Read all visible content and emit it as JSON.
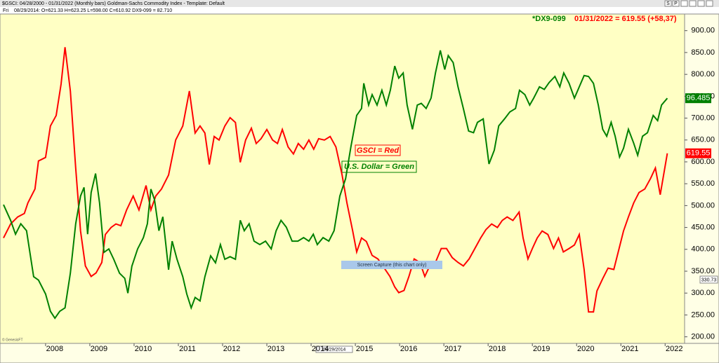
{
  "window": {
    "title": "$GSCI: 04/28/2000 - 01/31/2022  (Monthly bars)   Goldman-Sachs Commodity Index  -  Template: Default",
    "weekday": "Fri",
    "info": "08/29/2014:  O=621.33  H=623.25  L=598.00  C=610.92  DX9-099 = 82.710",
    "buttons": [
      "S",
      "P"
    ],
    "watermark": "© GenesisFT",
    "tooltip": "Screen Capture (this chart only)"
  },
  "chart_data": {
    "type": "line",
    "header_symbol": "*DX9-099",
    "header_quote": "01/31/2022 = 619.55 (+58,37)",
    "annotations": [
      "GSCI = Red",
      "U.S. Dollar = Green"
    ],
    "cursor_date": "08/29/2014",
    "cursor_value": 330.73,
    "xlim": [
      2006.97,
      2022.44
    ],
    "xticks": [
      2008,
      2009,
      2010,
      2011,
      2012,
      2013,
      2014,
      2015,
      2016,
      2017,
      2018,
      2019,
      2020,
      2021,
      2022
    ],
    "ylim": [
      185,
      938
    ],
    "yticks": [
      {
        "value": 200,
        "label": "200.00"
      },
      {
        "value": 250,
        "label": "250.00"
      },
      {
        "value": 300,
        "label": "300.00"
      },
      {
        "value": 350,
        "label": "350.00"
      },
      {
        "value": 400,
        "label": "400.00"
      },
      {
        "value": 450,
        "label": "450.00"
      },
      {
        "value": 500,
        "label": "500.00"
      },
      {
        "value": 550,
        "label": "550.00"
      },
      {
        "value": 600,
        "label": "600.00"
      },
      {
        "value": 650,
        "label": "650.00"
      },
      {
        "value": 700,
        "label": "700.00"
      },
      {
        "value": 750,
        "label": "750.00"
      },
      {
        "value": 800,
        "label": "800.00"
      },
      {
        "value": 850,
        "label": "850.00"
      },
      {
        "value": 900,
        "label": "900.00"
      }
    ],
    "y2lim": [
      68.2,
      106.2
    ],
    "grid": false,
    "series": [
      {
        "color": "#ff0000",
        "x": [
          2007.05,
          2007.21,
          2007.37,
          2007.52,
          2007.6,
          2007.76,
          2007.84,
          2008.0,
          2008.11,
          2008.24,
          2008.35,
          2008.44,
          2008.56,
          2008.68,
          2008.79,
          2008.9,
          2009.03,
          2009.14,
          2009.27,
          2009.35,
          2009.48,
          2009.59,
          2009.7,
          2009.83,
          2009.98,
          2010.11,
          2010.27,
          2010.38,
          2010.49,
          2010.62,
          2010.78,
          2010.94,
          2011.1,
          2011.25,
          2011.38,
          2011.49,
          2011.6,
          2011.7,
          2011.81,
          2011.92,
          2012.05,
          2012.17,
          2012.29,
          2012.4,
          2012.52,
          2012.65,
          2012.76,
          2012.87,
          2013.0,
          2013.13,
          2013.24,
          2013.35,
          2013.48,
          2013.6,
          2013.71,
          2013.83,
          2013.95,
          2014.06,
          2014.17,
          2014.3,
          2014.43,
          2014.56,
          2014.7,
          2014.81,
          2014.94,
          2015.03,
          2015.14,
          2015.25,
          2015.38,
          2015.51,
          2015.62,
          2015.78,
          2015.89,
          2015.98,
          2016.1,
          2016.21,
          2016.33,
          2016.46,
          2016.57,
          2016.68,
          2016.81,
          2016.94,
          2017.06,
          2017.19,
          2017.32,
          2017.44,
          2017.57,
          2017.7,
          2017.83,
          2017.95,
          2018.08,
          2018.21,
          2018.32,
          2018.43,
          2018.56,
          2018.7,
          2018.79,
          2018.9,
          2019.0,
          2019.11,
          2019.22,
          2019.35,
          2019.48,
          2019.59,
          2019.7,
          2019.83,
          2019.95,
          2020.06,
          2020.17,
          2020.27,
          2020.38,
          2020.46,
          2020.59,
          2020.71,
          2020.84,
          2020.94,
          2021.06,
          2021.17,
          2021.29,
          2021.41,
          2021.54,
          2021.67,
          2021.78,
          2021.89,
          2022.05
        ],
        "values": [
          426,
          458,
          474,
          482,
          506,
          538,
          602,
          610,
          682,
          706,
          778,
          862,
          762,
          586,
          442,
          362,
          338,
          346,
          370,
          434,
          450,
          458,
          454,
          490,
          522,
          490,
          546,
          490,
          522,
          538,
          570,
          650,
          682,
          762,
          666,
          682,
          666,
          594,
          658,
          650,
          682,
          701,
          690,
          599,
          650,
          677,
          642,
          653,
          674,
          650,
          642,
          674,
          634,
          618,
          642,
          629,
          650,
          629,
          653,
          650,
          658,
          634,
          570,
          506,
          442,
          394,
          426,
          418,
          386,
          378,
          362,
          338,
          314,
          301,
          306,
          338,
          378,
          370,
          338,
          362,
          370,
          402,
          402,
          381,
          370,
          362,
          378,
          402,
          426,
          445,
          458,
          450,
          466,
          474,
          466,
          485,
          426,
          378,
          402,
          426,
          442,
          434,
          402,
          426,
          394,
          402,
          410,
          434,
          354,
          257,
          257,
          305,
          333,
          357,
          354,
          394,
          442,
          474,
          506,
          530,
          538,
          562,
          586,
          525,
          619.55
        ]
      },
      {
        "color": "#008000",
        "axis": "y2",
        "x": [
          2007.05,
          2007.21,
          2007.32,
          2007.44,
          2007.57,
          2007.73,
          2007.84,
          2008.0,
          2008.11,
          2008.21,
          2008.32,
          2008.44,
          2008.56,
          2008.68,
          2008.79,
          2008.87,
          2008.95,
          2009.03,
          2009.13,
          2009.22,
          2009.32,
          2009.43,
          2009.54,
          2009.67,
          2009.79,
          2009.86,
          2009.95,
          2010.08,
          2010.21,
          2010.3,
          2010.38,
          2010.46,
          2010.56,
          2010.65,
          2010.78,
          2010.86,
          2010.97,
          2011.1,
          2011.19,
          2011.29,
          2011.38,
          2011.49,
          2011.6,
          2011.73,
          2011.84,
          2011.95,
          2012.05,
          2012.17,
          2012.29,
          2012.4,
          2012.49,
          2012.6,
          2012.71,
          2012.84,
          2012.97,
          2013.1,
          2013.21,
          2013.32,
          2013.44,
          2013.57,
          2013.7,
          2013.83,
          2013.95,
          2014.05,
          2014.14,
          2014.27,
          2014.4,
          2014.52,
          2014.65,
          2014.78,
          2014.9,
          2015.03,
          2015.14,
          2015.19,
          2015.3,
          2015.38,
          2015.49,
          2015.6,
          2015.7,
          2015.79,
          2015.89,
          2015.98,
          2016.08,
          2016.17,
          2016.29,
          2016.4,
          2016.49,
          2016.6,
          2016.71,
          2016.81,
          2016.92,
          2017.02,
          2017.1,
          2017.21,
          2017.32,
          2017.44,
          2017.56,
          2017.67,
          2017.76,
          2017.89,
          2018.02,
          2018.14,
          2018.24,
          2018.37,
          2018.49,
          2018.62,
          2018.71,
          2018.83,
          2018.94,
          2019.03,
          2019.16,
          2019.27,
          2019.38,
          2019.51,
          2019.62,
          2019.71,
          2019.83,
          2019.95,
          2020.06,
          2020.17,
          2020.27,
          2020.38,
          2020.49,
          2020.59,
          2020.68,
          2020.78,
          2020.87,
          2020.97,
          2021.06,
          2021.17,
          2021.29,
          2021.38,
          2021.49,
          2021.6,
          2021.73,
          2021.83,
          2021.92,
          2022.05
        ],
        "values": [
          84.2,
          82.4,
          80.8,
          82.0,
          81.2,
          75.9,
          75.5,
          73.9,
          71.9,
          71.1,
          71.9,
          72.3,
          76.3,
          82.0,
          85.2,
          86.2,
          80.8,
          85.6,
          87.8,
          84.4,
          78.7,
          79.1,
          77.9,
          76.3,
          75.7,
          74.0,
          77.1,
          79.1,
          80.4,
          82.0,
          86.0,
          84.8,
          81.2,
          82.8,
          76.7,
          80.0,
          77.9,
          75.9,
          73.9,
          72.3,
          73.5,
          73.1,
          75.9,
          78.3,
          77.5,
          79.6,
          77.9,
          78.2,
          77.9,
          82.4,
          81.2,
          82.0,
          80.0,
          79.6,
          80.0,
          79.1,
          81.2,
          82.4,
          81.6,
          80.0,
          80.0,
          80.4,
          80.0,
          80.8,
          79.6,
          80.4,
          80.0,
          81.2,
          85.2,
          87.2,
          90.9,
          94.5,
          95.3,
          98.2,
          95.7,
          96.9,
          95.7,
          97.4,
          95.7,
          97.4,
          100.2,
          98.8,
          99.4,
          95.7,
          92.9,
          95.7,
          95.9,
          95.3,
          96.5,
          99.4,
          102.0,
          99.8,
          101.4,
          100.6,
          97.8,
          95.3,
          92.7,
          92.5,
          93.7,
          94.1,
          88.9,
          90.5,
          93.3,
          94.1,
          94.9,
          95.3,
          97.4,
          96.9,
          95.7,
          96.5,
          97.8,
          97.5,
          98.3,
          99.0,
          97.8,
          99.4,
          98.2,
          96.5,
          97.8,
          99.1,
          99.0,
          98.2,
          95.7,
          92.9,
          92.1,
          93.7,
          92.1,
          89.7,
          90.7,
          92.9,
          91.3,
          89.9,
          92.1,
          92.5,
          94.5,
          93.9,
          95.7,
          96.485
        ]
      }
    ]
  }
}
